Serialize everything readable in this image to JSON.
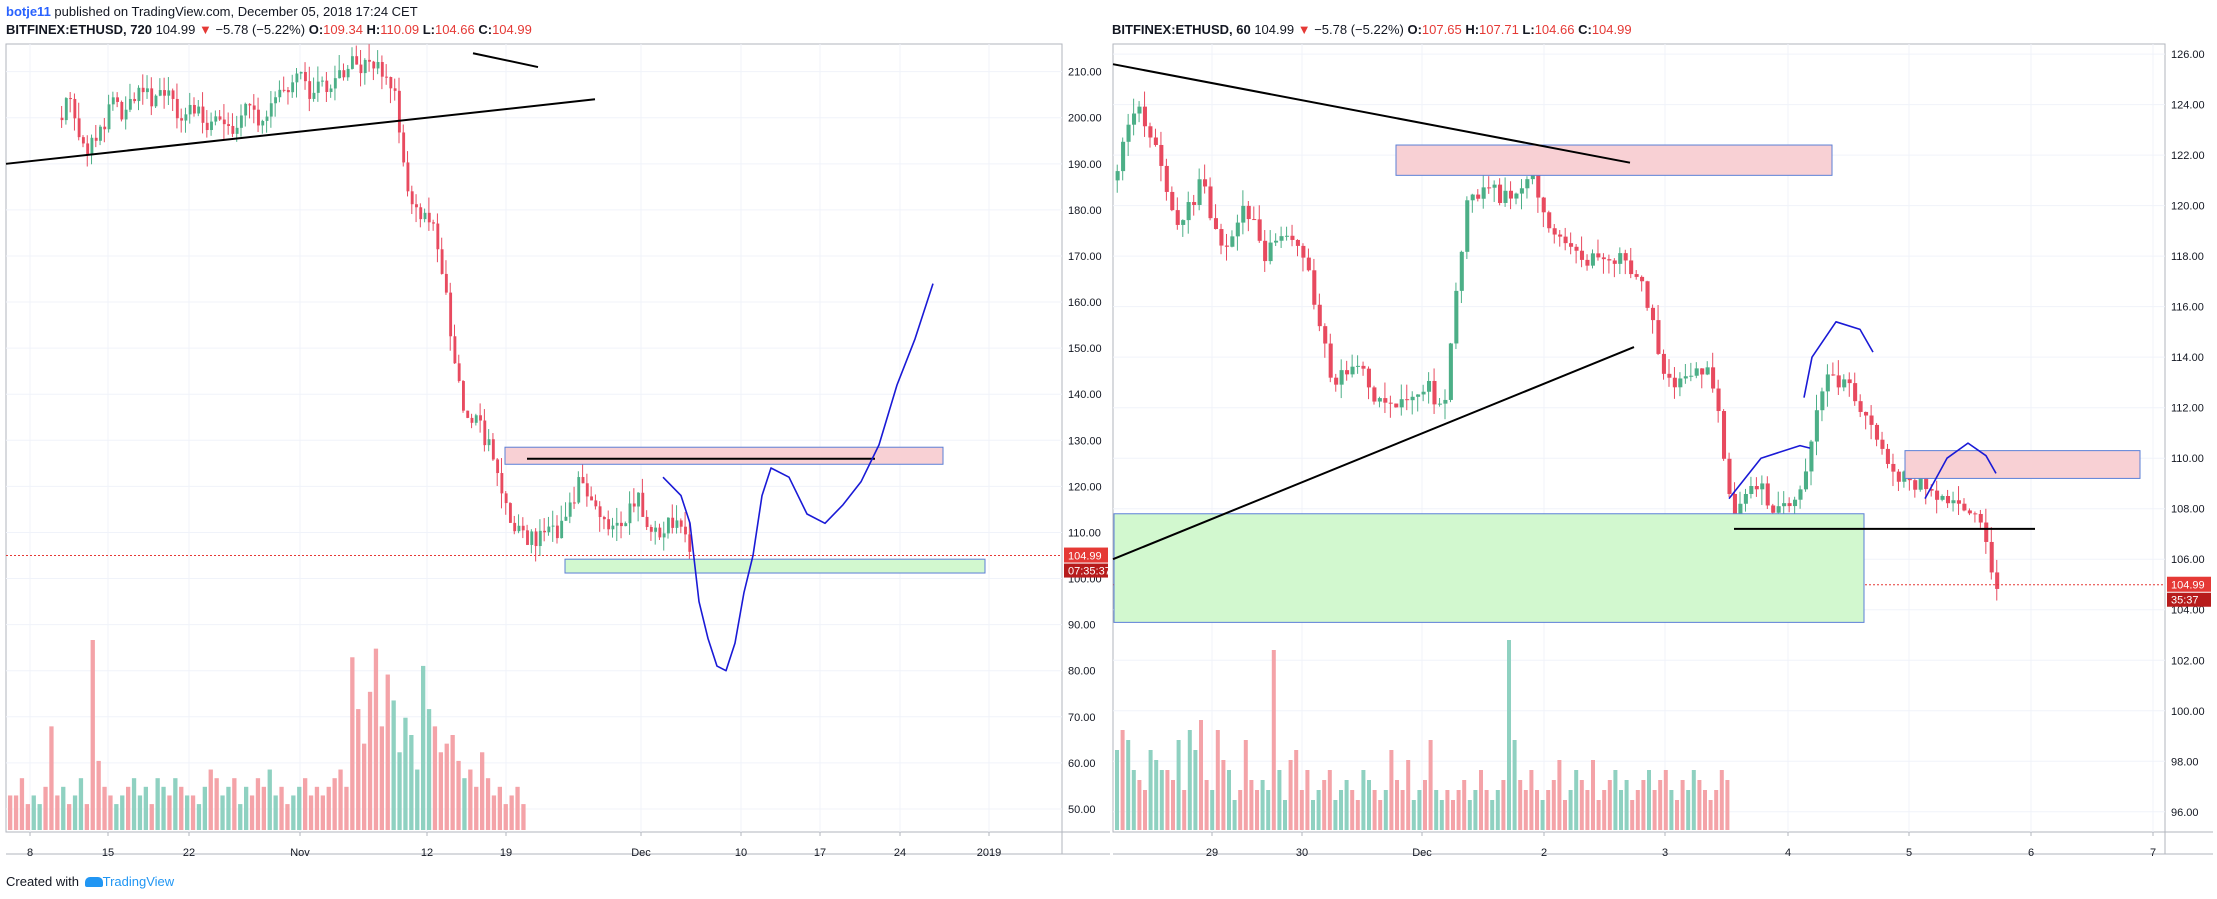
{
  "header": {
    "user": "botje11",
    "text": " published on TradingView.com, December 05, 2018 17:24 CET"
  },
  "colors": {
    "up": "#4caf87",
    "down": "#e84a5f",
    "up_vol": "#8fd1c1",
    "down_vol": "#f4a3a8",
    "drawing_blue": "#1a1ad6",
    "supply_zone": "#f8d0d4",
    "demand_zone": "#d2f8cf",
    "price_line": "#e53935"
  },
  "footer": {
    "prefix": "Created with",
    "brand": "TradingView",
    "icon": "tradingview-logo-icon"
  },
  "chart_data": [
    {
      "type": "candlestick",
      "symbol": "BITFINEX:ETHUSD",
      "interval": "720",
      "last": "104.99",
      "change": "−5.78 (−5.22%)",
      "open": "109.34",
      "high": "110.09",
      "low": "104.66",
      "close": "104.99",
      "price_label": "104.99",
      "countdown_label": "07:35:37",
      "ylim": [
        45,
        216
      ],
      "y_ticks": [
        "210.00",
        "200.00",
        "190.00",
        "180.00",
        "170.00",
        "160.00",
        "150.00",
        "140.00",
        "130.00",
        "120.00",
        "110.00",
        "100.00",
        "90.00",
        "80.00",
        "70.00",
        "60.00",
        "50.00"
      ],
      "x_ticks": [
        "8",
        "15",
        "22",
        "Nov",
        "12",
        "19",
        "Dec",
        "10",
        "17",
        "24",
        "2019"
      ],
      "price_path": [
        [
          0,
          200
        ],
        [
          2,
          205
        ],
        [
          4,
          192
        ],
        [
          6,
          196
        ],
        [
          8,
          203
        ],
        [
          10,
          200
        ],
        [
          12,
          207
        ],
        [
          14,
          203
        ],
        [
          16,
          205
        ],
        [
          18,
          201
        ],
        [
          20,
          203
        ],
        [
          22,
          198
        ],
        [
          24,
          199
        ],
        [
          26,
          197
        ],
        [
          28,
          202
        ],
        [
          30,
          199
        ],
        [
          32,
          204
        ],
        [
          34,
          206
        ],
        [
          36,
          209
        ],
        [
          38,
          205
        ],
        [
          40,
          207
        ],
        [
          42,
          210
        ],
        [
          44,
          212
        ],
        [
          46,
          211
        ],
        [
          48,
          211
        ],
        [
          50,
          206
        ],
        [
          52,
          186
        ],
        [
          54,
          178
        ],
        [
          56,
          176
        ],
        [
          58,
          159
        ],
        [
          60,
          138
        ],
        [
          62,
          135
        ],
        [
          64,
          129
        ],
        [
          66,
          118
        ],
        [
          68,
          111
        ],
        [
          70,
          108
        ],
        [
          72,
          109
        ],
        [
          74,
          110
        ],
        [
          76,
          114
        ],
        [
          78,
          122
        ],
        [
          80,
          116
        ],
        [
          82,
          112
        ],
        [
          84,
          110
        ],
        [
          86,
          118
        ],
        [
          88,
          112
        ],
        [
          90,
          110
        ],
        [
          92,
          113
        ],
        [
          94,
          105
        ]
      ],
      "volume": [
        4,
        4,
        6,
        3,
        4,
        3,
        5,
        12,
        4,
        5,
        3,
        4,
        6,
        3,
        22,
        8,
        5,
        4,
        3,
        4,
        5,
        6,
        4,
        5,
        3,
        6,
        5,
        4,
        6,
        5,
        4,
        4,
        3,
        5,
        7,
        6,
        4,
        5,
        6,
        3,
        5,
        4,
        6,
        5,
        7,
        4,
        5,
        3,
        4,
        5,
        6,
        4,
        5,
        4,
        5,
        6,
        7,
        5,
        20,
        14,
        10,
        16,
        21,
        12,
        18,
        15,
        9,
        13,
        11,
        7,
        19,
        14,
        12,
        9,
        10,
        11,
        8,
        6,
        7,
        5,
        9,
        6,
        4,
        5,
        3,
        4,
        5,
        3
      ],
      "vol_colors": "dddduuddduduuddddduuduuuduudududuudduuduuddduudduuddddddddddddddduuuuuuuddddduddddddddddd",
      "drawings": {
        "trendlines": [
          [
            [
              0,
              190
            ],
            [
              62,
              205
            ]
          ],
          [
            [
              49,
              214
            ],
            [
              56,
              212
            ]
          ]
        ],
        "resistance_line": [
          [
            55,
            126
          ],
          [
            92,
            126
          ]
        ],
        "supply_zone": [
          128.5,
          124.8
        ],
        "demand_zone": [
          104.2,
          101.2
        ],
        "projection": [
          [
            69,
            122
          ],
          [
            71,
            118
          ],
          [
            72,
            112
          ],
          [
            73,
            95
          ],
          [
            74,
            87
          ],
          [
            75,
            81
          ],
          [
            76,
            80
          ],
          [
            77,
            86
          ],
          [
            78,
            97
          ],
          [
            79,
            105
          ],
          [
            80,
            118
          ],
          [
            81,
            124
          ],
          [
            83,
            122
          ],
          [
            85,
            114
          ],
          [
            87,
            112
          ],
          [
            89,
            116
          ],
          [
            91,
            121
          ],
          [
            93,
            129
          ],
          [
            95,
            142
          ],
          [
            97,
            152
          ],
          [
            98,
            158
          ],
          [
            99,
            164
          ]
        ]
      }
    },
    {
      "type": "candlestick",
      "symbol": "BITFINEX:ETHUSD",
      "interval": "60",
      "last": "104.99",
      "change": "−5.78 (−5.22%)",
      "open": "107.65",
      "high": "107.71",
      "low": "104.66",
      "close": "104.99",
      "price_label": "104.99",
      "countdown_label": "35:37",
      "ylim": [
        95.2,
        126.4
      ],
      "y_ticks": [
        "126.00",
        "124.00",
        "122.00",
        "120.00",
        "118.00",
        "116.00",
        "114.00",
        "112.00",
        "110.00",
        "108.00",
        "106.00",
        "104.00",
        "102.00",
        "100.00",
        "98.00",
        "96.00"
      ],
      "x_ticks": [
        "29",
        "30",
        "Dec",
        "2",
        "3",
        "4",
        "5",
        "6",
        "7"
      ],
      "price_path": [
        [
          0,
          121
        ],
        [
          1,
          124
        ],
        [
          2,
          122
        ],
        [
          3,
          119
        ],
        [
          4,
          121
        ],
        [
          5,
          118
        ],
        [
          6,
          120
        ],
        [
          7,
          118
        ],
        [
          8,
          119
        ],
        [
          9,
          117
        ],
        [
          10,
          113
        ],
        [
          11,
          114
        ],
        [
          12,
          112
        ],
        [
          13,
          112
        ],
        [
          14,
          113
        ],
        [
          15,
          112
        ],
        [
          16,
          120
        ],
        [
          17,
          121
        ],
        [
          18,
          120
        ],
        [
          19,
          121
        ],
        [
          20,
          119
        ],
        [
          21,
          118
        ],
        [
          22,
          118
        ],
        [
          23,
          118
        ],
        [
          24,
          117
        ],
        [
          25,
          113
        ],
        [
          26,
          113
        ],
        [
          27,
          114
        ],
        [
          28,
          108
        ],
        [
          29,
          109
        ],
        [
          30,
          108
        ],
        [
          31,
          108
        ],
        [
          32,
          113
        ],
        [
          33,
          113
        ],
        [
          34,
          112
        ],
        [
          35,
          110
        ],
        [
          36,
          109
        ],
        [
          37,
          109
        ],
        [
          38,
          108
        ],
        [
          39,
          108
        ],
        [
          40,
          105
        ]
      ],
      "volume": [
        8,
        10,
        9,
        6,
        5,
        4,
        8,
        7,
        6,
        6,
        5,
        9,
        4,
        10,
        8,
        11,
        5,
        4,
        10,
        7,
        6,
        3,
        4,
        9,
        5,
        4,
        5,
        4,
        18,
        6,
        3,
        7,
        8,
        4,
        6,
        3,
        4,
        5,
        6,
        3,
        4,
        5,
        4,
        3,
        6,
        5,
        4,
        3,
        4,
        8,
        5,
        4,
        7,
        3,
        4,
        5,
        9,
        4,
        3,
        4,
        3,
        4,
        5,
        3,
        4,
        6,
        4,
        3,
        4,
        5,
        19,
        9,
        5,
        4,
        6,
        4,
        3,
        4,
        5,
        7,
        3,
        4,
        6,
        5,
        4,
        7,
        3,
        4,
        5,
        6,
        4,
        5,
        3,
        4,
        5,
        6,
        4,
        5,
        6,
        4,
        3,
        5,
        4,
        6,
        5,
        4,
        3,
        4,
        6,
        5
      ],
      "vol_colors": "uduudduuudduduuddudduudddduuduudddduudduuudduuddudddduudduudddduudduuduuddddudddduudddddduuudddudddudduuddddddd",
      "drawings": {
        "trendlines": [
          [
            [
              0,
              125.6
            ],
            [
              35.2,
              121.7
            ]
          ],
          [
            [
              0,
              106
            ],
            [
              35.2,
              114.4
            ]
          ]
        ],
        "horizontal_line": [
          [
            35.7,
            107.2
          ],
          [
            56.7,
            107.2
          ]
        ],
        "supply_zones": [
          [
            0,
            122.4,
            35,
            121.2
          ],
          [
            40,
            110.3,
            48,
            109.2
          ]
        ],
        "demand_zone": [
          0,
          107.8,
          30,
          103.5
        ],
        "arcs": [
          [
            [
              35.8,
              108.4
            ],
            [
              38,
              110
            ],
            [
              40.6,
              110.5
            ],
            [
              42,
              110.4
            ]
          ],
          [
            [
              37.6,
              112.4
            ],
            [
              38,
              114
            ],
            [
              39.5,
              115.4
            ],
            [
              41,
              115.1
            ],
            [
              42,
              114.2
            ]
          ],
          [
            [
              44.8,
              108.4
            ],
            [
              46,
              110
            ],
            [
              47,
              110.6
            ],
            [
              48,
              110.1
            ],
            [
              48.6,
              109.4
            ]
          ]
        ]
      }
    }
  ]
}
